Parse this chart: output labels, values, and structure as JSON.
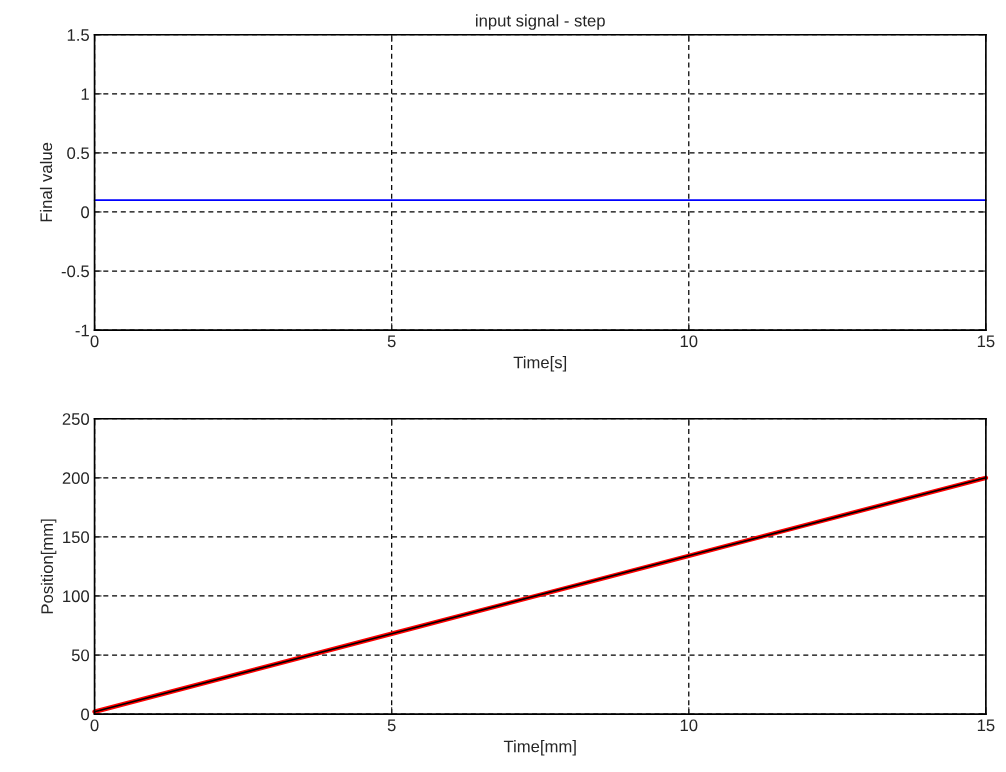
{
  "chart_data": [
    {
      "type": "line",
      "title": "input signal - step",
      "xlabel": "Time[s]",
      "ylabel": "Final value",
      "xlim": [
        0,
        15
      ],
      "ylim": [
        -1,
        1.5
      ],
      "xticks": [
        0,
        5,
        10,
        15
      ],
      "yticks": [
        -1,
        -0.5,
        0,
        0.5,
        1,
        1.5
      ],
      "grid": true,
      "line_style": "solid",
      "series": [
        {
          "color": "#0000ff",
          "x": [
            0,
            5,
            10,
            15
          ],
          "values": [
            0.1,
            0.1,
            0.1,
            0.1
          ]
        }
      ]
    },
    {
      "type": "line",
      "xlabel": "Time[mm]",
      "ylabel": "Position[mm]",
      "xlim": [
        0,
        15
      ],
      "ylim": [
        0,
        250
      ],
      "xticks": [
        0,
        5,
        10,
        15
      ],
      "yticks": [
        0,
        50,
        100,
        150,
        200,
        250
      ],
      "grid": true,
      "line_style": "solid",
      "series": [
        {
          "color": "#ff0000",
          "x": [
            0,
            5,
            10,
            15
          ],
          "values": [
            2,
            68,
            134,
            200
          ]
        },
        {
          "color": "#000000",
          "x": [
            0,
            5,
            10,
            15
          ],
          "values": [
            2,
            68,
            134,
            200
          ]
        }
      ]
    }
  ]
}
